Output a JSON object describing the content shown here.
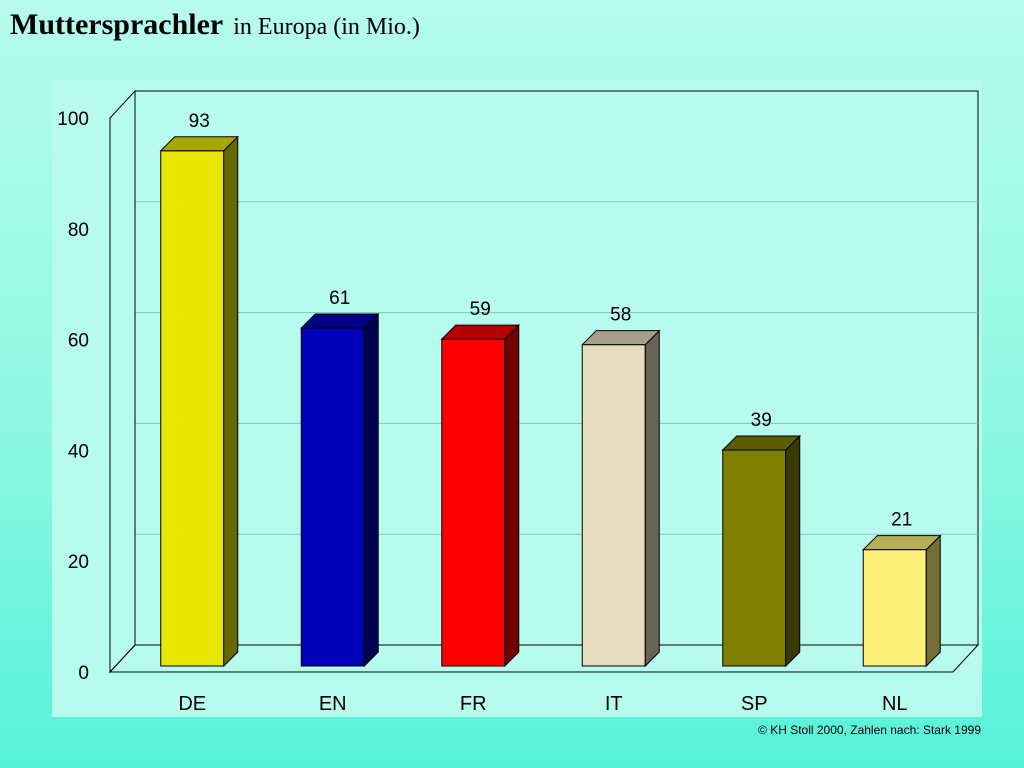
{
  "header": {
    "title": "Muttersprachler",
    "subtitle": "in Europa (in Mio.)"
  },
  "footer": {
    "credit": "© KH Stoll 2000, Zahlen nach: Stark 1999"
  },
  "colors": {
    "panel_background": "#b6fbee",
    "grid": "#7fc6c0",
    "DE": "#e6e600",
    "EN": "#0000b8",
    "FR": "#ff0000",
    "IT": "#e8dcc0",
    "SP": "#808000",
    "NL": "#fff27a"
  },
  "chart_data": {
    "type": "bar",
    "title": "Muttersprachler",
    "subtitle": "in Europa (in Mio.)",
    "xlabel": "",
    "ylabel": "",
    "categories": [
      "DE",
      "EN",
      "FR",
      "IT",
      "SP",
      "NL"
    ],
    "values": [
      93,
      61,
      59,
      58,
      39,
      21
    ],
    "data_labels": [
      "93",
      "61",
      "59",
      "58",
      "39",
      "21"
    ],
    "ylim": [
      0,
      100
    ],
    "yticks": [
      0,
      20,
      40,
      60,
      80,
      100
    ],
    "ytick_labels": [
      "0",
      "20",
      "40",
      "60",
      "80",
      "100"
    ],
    "grid": true,
    "style": "3d-bars"
  }
}
